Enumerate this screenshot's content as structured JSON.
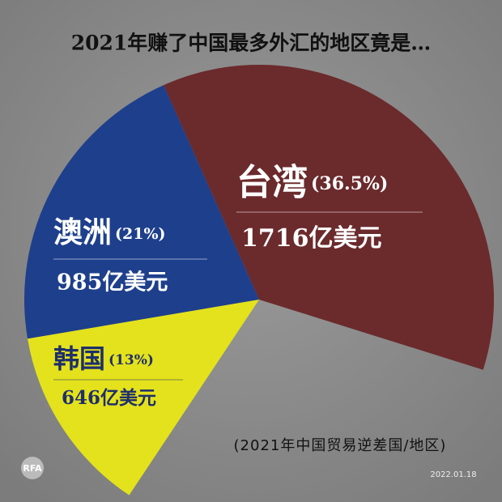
{
  "chart_data": {
    "type": "pie",
    "title": "2021年赚了中国最多外汇的地区竟是…",
    "subtitle": "(2021年中国贸易逆差国/地区)",
    "date": "2022.01.18",
    "logo": "RFA",
    "categories": [
      "台湾",
      "澳洲",
      "韩国"
    ],
    "values": [
      36.5,
      21,
      13
    ],
    "value_labels": [
      "(36.5%)",
      "(21%)",
      "(13%)"
    ],
    "amount_labels": [
      "1716亿美元",
      "985亿美元",
      "646亿美元"
    ],
    "colors": [
      "#6b2a2c",
      "#1e3f8c",
      "#e4e21c"
    ]
  }
}
